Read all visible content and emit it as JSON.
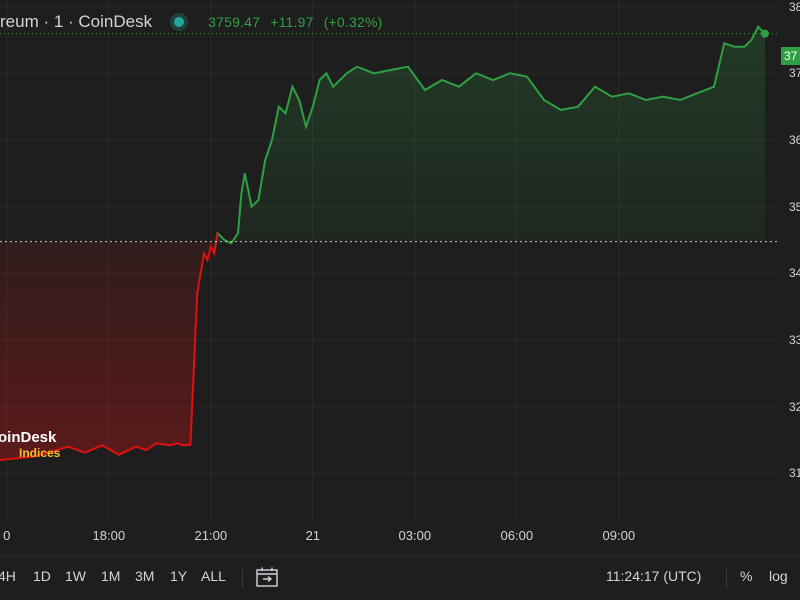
{
  "header": {
    "title": "reum · 1 · CoinDesk",
    "price": "3759.47",
    "change": "+11.97",
    "change_pct": "(+0.32%)"
  },
  "price_tag": "37",
  "watermark": {
    "main": "oinDesk",
    "sub": "Indices"
  },
  "toolbar": {
    "ranges": [
      "4H",
      "1D",
      "1W",
      "1M",
      "3M",
      "1Y",
      "ALL"
    ],
    "clock": "11:24:17 (UTC)",
    "percent_label": "%",
    "log_label": "log"
  },
  "colors": {
    "up": "#2ea043",
    "down": "#e01010",
    "background": "#1e1e1e",
    "grid": "#2a2a2a"
  },
  "chart_data": {
    "type": "line",
    "title": "reum · 1 · CoinDesk",
    "xlabel": "",
    "ylabel": "",
    "x_tick_labels": [
      "0",
      "18:00",
      "21:00",
      "21",
      "03:00",
      "06:00",
      "09:00"
    ],
    "y_tick_labels": [
      "38",
      "37",
      "36",
      "35",
      "34",
      "33",
      "32",
      "31"
    ],
    "y_tick_values": [
      3800,
      3700,
      3600,
      3500,
      3400,
      3300,
      3200,
      3100
    ],
    "ylim": [
      3030,
      3810
    ],
    "baseline": 3447.5,
    "last_value": 3759.47,
    "x_unit": "hours",
    "x": [
      0,
      1,
      2,
      2.5,
      3,
      3.5,
      4,
      4.3,
      4.6,
      5,
      5.2,
      5.4,
      5.6,
      5.8,
      6,
      6.1,
      6.2,
      6.3,
      6.4,
      6.6,
      6.8,
      7,
      7.1,
      7.2,
      7.4,
      7.6,
      7.8,
      8,
      8.2,
      8.4,
      8.6,
      8.8,
      9,
      9.2,
      9.4,
      9.6,
      9.8,
      10,
      10.2,
      10.5,
      11,
      11.5,
      12,
      12.5,
      13,
      13.5,
      14,
      14.5,
      15,
      15.5,
      16,
      16.5,
      17,
      17.5,
      18,
      18.5,
      19,
      19.5,
      20,
      20.5,
      21,
      21.3,
      21.6,
      21.9,
      22.1,
      22.3,
      22.5
    ],
    "y": [
      3120,
      3125,
      3140,
      3131,
      3142,
      3128,
      3140,
      3135,
      3145,
      3142,
      3145,
      3142,
      3143,
      3370,
      3430,
      3420,
      3440,
      3430,
      3460,
      3450,
      3445,
      3460,
      3520,
      3550,
      3500,
      3510,
      3570,
      3600,
      3650,
      3640,
      3680,
      3660,
      3620,
      3650,
      3690,
      3700,
      3680,
      3690,
      3700,
      3710,
      3700,
      3705,
      3710,
      3675,
      3690,
      3680,
      3700,
      3690,
      3700,
      3695,
      3660,
      3645,
      3650,
      3680,
      3665,
      3670,
      3660,
      3665,
      3660,
      3670,
      3680,
      3745,
      3740,
      3740,
      3750,
      3770,
      3759.47
    ],
    "grid": true,
    "legend": "none"
  }
}
